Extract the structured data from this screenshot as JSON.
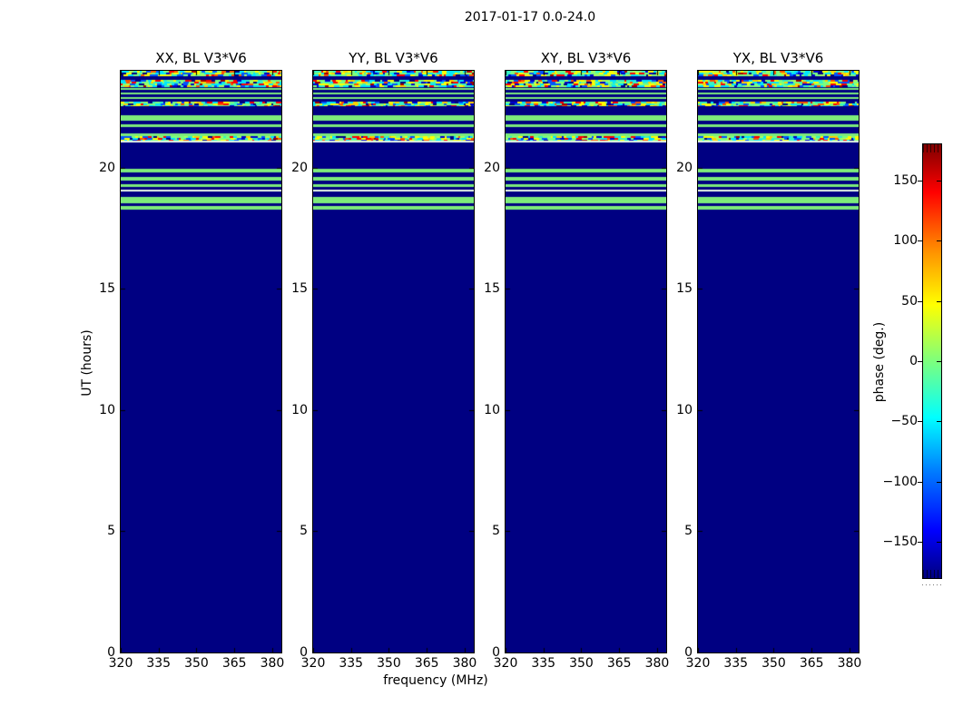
{
  "chart_data": {
    "type": "heatmap",
    "title": "2017-01-17 0.0-24.0",
    "xlabel": "frequency (MHz)",
    "ylabel": "UT (hours)",
    "x_range": [
      320,
      383.6
    ],
    "x_ticks": [
      320,
      335,
      350,
      365,
      380
    ],
    "y_range": [
      0,
      24
    ],
    "y_ticks": [
      0,
      5,
      10,
      15,
      20
    ],
    "grid": false,
    "panels": [
      {
        "title": "XX, BL V3*V6"
      },
      {
        "title": "YY, BL V3*V6"
      },
      {
        "title": "XY, BL V3*V6"
      },
      {
        "title": "YX, BL V3*V6"
      }
    ],
    "colorbar": {
      "label": "phase (deg.)",
      "ticks": [
        150,
        100,
        50,
        0,
        -50,
        -100,
        -150
      ],
      "tick_labels": [
        "150",
        "100",
        "50",
        "0",
        "−50",
        "−100",
        "−150"
      ],
      "range": [
        -180,
        180
      ],
      "colormap": "jet",
      "position": "right",
      "gradient_stops": [
        {
          "pos": 0.0,
          "color": "#7f0000"
        },
        {
          "pos": 0.11,
          "color": "#ff0000"
        },
        {
          "pos": 0.25,
          "color": "#ff9400"
        },
        {
          "pos": 0.37,
          "color": "#ffff00"
        },
        {
          "pos": 0.5,
          "color": "#7dff7d"
        },
        {
          "pos": 0.63,
          "color": "#00ffff"
        },
        {
          "pos": 0.75,
          "color": "#0080ff"
        },
        {
          "pos": 0.89,
          "color": "#0000ff"
        },
        {
          "pos": 1.0,
          "color": "#000080"
        }
      ]
    },
    "values_description": "Phase (deg.) vs frequency and UT. All four polarisation panels show an identical pattern: solid -180 deg (navy) from UT 0 to ~18.3, then horizontal stripes of ~0 deg phase (light green), two pale near-white lines, and noisy multicolour speckled rows between UT ~18.3 and 24.",
    "bands": [
      {
        "ut_top": 24.0,
        "ut_bottom": 23.79,
        "type": "speckle"
      },
      {
        "ut_top": 23.63,
        "ut_bottom": 23.31,
        "type": "speckle"
      },
      {
        "ut_top": 23.29,
        "ut_bottom": 23.2,
        "type": "green"
      },
      {
        "ut_top": 23.1,
        "ut_bottom": 23.03,
        "type": "green"
      },
      {
        "ut_top": 22.92,
        "ut_bottom": 22.84,
        "type": "green"
      },
      {
        "ut_top": 22.73,
        "ut_bottom": 22.54,
        "type": "speckle"
      },
      {
        "ut_top": 22.17,
        "ut_bottom": 21.94,
        "type": "green"
      },
      {
        "ut_top": 21.79,
        "ut_bottom": 21.68,
        "type": "green"
      },
      {
        "ut_top": 21.42,
        "ut_bottom": 21.31,
        "type": "green"
      },
      {
        "ut_top": 21.31,
        "ut_bottom": 21.12,
        "type": "speckle"
      },
      {
        "ut_top": 21.12,
        "ut_bottom": 21.04,
        "type": "white"
      },
      {
        "ut_top": 19.96,
        "ut_bottom": 19.81,
        "type": "green"
      },
      {
        "ut_top": 19.62,
        "ut_bottom": 19.47,
        "type": "green"
      },
      {
        "ut_top": 19.32,
        "ut_bottom": 19.21,
        "type": "green"
      },
      {
        "ut_top": 19.1,
        "ut_bottom": 19.02,
        "type": "white"
      },
      {
        "ut_top": 18.8,
        "ut_bottom": 18.53,
        "type": "green"
      },
      {
        "ut_top": 18.42,
        "ut_bottom": 18.27,
        "type": "green"
      }
    ],
    "colors": {
      "navy": "#000082",
      "green": "#7deb7a",
      "white": "#e8fae6",
      "speckle_palette": [
        "#00e5ff",
        "#36f2c3",
        "#7dff7d",
        "#a8ff60",
        "#ffff00",
        "#ffd000",
        "#ff5400",
        "#ff0000",
        "#9e0000",
        "#0055ff",
        "#0000cd",
        "#000082"
      ],
      "speckle_weights": [
        0.15,
        0.1,
        0.18,
        0.06,
        0.13,
        0.05,
        0.05,
        0.06,
        0.02,
        0.08,
        0.06,
        0.06
      ]
    }
  }
}
